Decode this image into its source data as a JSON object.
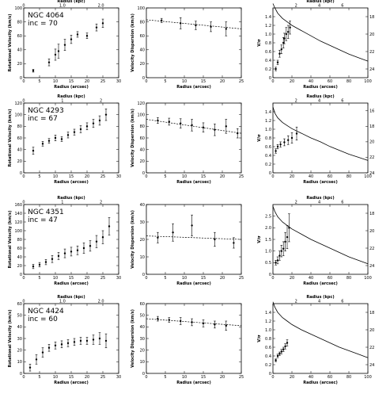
{
  "figure": {
    "rows": [
      {
        "name": "NGC 4064",
        "inc": "inc = 70"
      },
      {
        "name": "NGC 4293",
        "inc": "inc = 67"
      },
      {
        "name": "NGC 4351",
        "inc": "inc = 47"
      },
      {
        "name": "NGC 4424",
        "inc": "inc = 60"
      }
    ]
  },
  "chart_data": [
    {
      "type": "scatter",
      "galaxy": "NGC 4064",
      "inclination": "inc = 70",
      "xlabel": "Radius (arcsec)",
      "ylabel": "Rotational Velocity (km/s)",
      "top_label": "Radius (kpc)",
      "xlim": [
        0,
        30
      ],
      "ylim": [
        0,
        100
      ],
      "xticks": [
        "0",
        "5",
        "10",
        "15",
        "20",
        "25",
        "30"
      ],
      "yticks": [
        "0",
        "20",
        "40",
        "60",
        "80",
        "100"
      ],
      "top_ticks": [
        "0",
        "1.0",
        "2.0"
      ],
      "top_tick_x": [
        0,
        12.2,
        24.4
      ],
      "x": [
        3,
        8,
        10,
        11,
        13,
        15,
        17,
        20,
        23,
        25
      ],
      "y": [
        10,
        22,
        33,
        38,
        47,
        55,
        62,
        60,
        72,
        78
      ],
      "yerr": [
        2,
        5,
        8,
        10,
        8,
        6,
        4,
        4,
        5,
        6
      ]
    },
    {
      "type": "scatter",
      "xlabel": "Radius (arcsec)",
      "ylabel": "Velocity Dispersion (km/s)",
      "xlim": [
        0,
        25
      ],
      "ylim": [
        0,
        100
      ],
      "xticks": [
        "0",
        "5",
        "10",
        "15",
        "20",
        "25"
      ],
      "yticks": [
        "0",
        "20",
        "40",
        "60",
        "80",
        "100"
      ],
      "x": [
        4,
        9,
        13,
        17,
        21
      ],
      "y": [
        82,
        78,
        75,
        73,
        70
      ],
      "yerr": [
        3,
        8,
        6,
        7,
        10
      ],
      "fit": {
        "x": [
          0,
          25
        ],
        "y": [
          83,
          70
        ]
      }
    },
    {
      "type": "line",
      "xlabel": "Radius (arcsec)",
      "ylabel": "V/σ",
      "right_label": "μ (mag/arcsec²)",
      "top_label": "Radius (kpc)",
      "xlim": [
        0,
        100
      ],
      "ylim": [
        0,
        1.6
      ],
      "xticks": [
        "0",
        "20",
        "40",
        "60",
        "80",
        "100"
      ],
      "yticks": [
        "0",
        "0.2",
        "0.4",
        "0.6",
        "0.8",
        "1.0",
        "1.2",
        "1.4"
      ],
      "right_ticks": [
        "18",
        "20",
        "22",
        "24"
      ],
      "top_ticks": [
        "2",
        "4",
        "6"
      ],
      "top_tick_x": [
        24.4,
        48.8,
        73.2
      ],
      "x": [
        3,
        5,
        7,
        9,
        11,
        12,
        14,
        16,
        18
      ],
      "y": [
        0.2,
        0.35,
        0.55,
        0.65,
        0.8,
        0.9,
        1.0,
        1.05,
        1.15
      ],
      "yerr": [
        0.04,
        0.05,
        0.08,
        0.1,
        0.12,
        0.12,
        0.15,
        0.15,
        0.15
      ],
      "profile": {
        "x": [
          0,
          2,
          5,
          10,
          15,
          20,
          30,
          40,
          50,
          60,
          70,
          80,
          90,
          100
        ],
        "mu": [
          16.5,
          17.0,
          17.6,
          18.2,
          18.6,
          19.0,
          19.6,
          20.2,
          20.8,
          21.3,
          21.8,
          22.3,
          22.7,
          23.1
        ],
        "mu_range": [
          17,
          25
        ]
      }
    },
    {
      "type": "scatter",
      "galaxy": "NGC 4293",
      "inclination": "inc = 67",
      "xlabel": "Radius (arcsec)",
      "ylabel": "Rotational Velocity (km/s)",
      "top_label": "Radius (kpc)",
      "xlim": [
        0,
        30
      ],
      "ylim": [
        0,
        120
      ],
      "xticks": [
        "0",
        "5",
        "10",
        "15",
        "20",
        "25",
        "30"
      ],
      "yticks": [
        "0",
        "20",
        "40",
        "60",
        "80",
        "100",
        "120"
      ],
      "top_ticks": [
        "0",
        "1",
        "2"
      ],
      "top_tick_x": [
        0,
        12.2,
        24.4
      ],
      "x": [
        3,
        6,
        8,
        10,
        12,
        14,
        16,
        18,
        20,
        22,
        24,
        26
      ],
      "y": [
        38,
        50,
        55,
        60,
        58,
        65,
        70,
        75,
        80,
        85,
        90,
        100
      ],
      "yerr": [
        6,
        4,
        4,
        5,
        4,
        5,
        5,
        6,
        6,
        7,
        8,
        10
      ]
    },
    {
      "type": "scatter",
      "xlabel": "Radius (arcsec)",
      "ylabel": "Velocity Dispersion (km/s)",
      "xlim": [
        0,
        25
      ],
      "ylim": [
        0,
        120
      ],
      "xticks": [
        "0",
        "5",
        "10",
        "15",
        "20",
        "25"
      ],
      "yticks": [
        "0",
        "20",
        "40",
        "60",
        "80",
        "100",
        "120"
      ],
      "x": [
        3,
        6,
        9,
        12,
        15,
        18,
        21,
        24
      ],
      "y": [
        90,
        88,
        85,
        82,
        78,
        74,
        80,
        68
      ],
      "yerr": [
        5,
        6,
        8,
        10,
        8,
        10,
        12,
        8
      ],
      "fit": {
        "x": [
          0,
          25
        ],
        "y": [
          92,
          68
        ]
      }
    },
    {
      "type": "line",
      "xlabel": "Radius (arcsec)",
      "ylabel": "V/σ",
      "right_label": "μ (mag/arcsec²)",
      "top_label": "Radius (kpc)",
      "xlim": [
        0,
        100
      ],
      "ylim": [
        0,
        1.6
      ],
      "xticks": [
        "0",
        "20",
        "40",
        "60",
        "80",
        "100"
      ],
      "yticks": [
        "0",
        "0.2",
        "0.4",
        "0.6",
        "0.8",
        "1.0",
        "1.2",
        "1.4"
      ],
      "right_ticks": [
        "16",
        "18",
        "20",
        "22",
        "24"
      ],
      "top_ticks": [
        "2",
        "4",
        "6"
      ],
      "top_tick_x": [
        24.4,
        48.8,
        73.2
      ],
      "x": [
        3,
        5,
        8,
        12,
        16,
        20,
        25
      ],
      "y": [
        0.5,
        0.6,
        0.65,
        0.7,
        0.75,
        0.8,
        0.9
      ],
      "yerr": [
        0.05,
        0.05,
        0.06,
        0.08,
        0.1,
        0.12,
        0.15
      ],
      "profile": {
        "x": [
          0,
          2,
          5,
          10,
          15,
          20,
          30,
          40,
          50,
          60,
          70,
          80,
          90,
          100
        ],
        "mu": [
          15.5,
          16.3,
          16.9,
          17.5,
          17.9,
          18.3,
          18.9,
          19.5,
          20.0,
          20.6,
          21.1,
          21.6,
          22.0,
          22.4
        ],
        "mu_range": [
          15,
          24
        ]
      }
    },
    {
      "type": "scatter",
      "galaxy": "NGC 4351",
      "inclination": "inc = 47",
      "xlabel": "Radius (arcsec)",
      "ylabel": "Rotational Velocity (km/s)",
      "top_label": "Radius (kpc)",
      "xlim": [
        0,
        30
      ],
      "ylim": [
        0,
        160
      ],
      "xticks": [
        "0",
        "5",
        "10",
        "15",
        "20",
        "25",
        "30"
      ],
      "yticks": [
        "0",
        "20",
        "40",
        "60",
        "80",
        "100",
        "120",
        "140",
        "160"
      ],
      "top_ticks": [
        "0",
        "1",
        "2"
      ],
      "top_tick_x": [
        0,
        12.2,
        24.4
      ],
      "x": [
        3,
        5,
        7,
        9,
        11,
        13,
        15,
        17,
        19,
        21,
        23,
        25,
        27
      ],
      "y": [
        18,
        22,
        28,
        35,
        42,
        48,
        52,
        55,
        60,
        65,
        75,
        85,
        110
      ],
      "yerr": [
        5,
        5,
        6,
        8,
        8,
        10,
        10,
        10,
        12,
        12,
        14,
        15,
        20
      ]
    },
    {
      "type": "scatter",
      "xlabel": "Radius (arcsec)",
      "ylabel": "Velocity Dispersion (km/s)",
      "xlim": [
        0,
        25
      ],
      "ylim": [
        0,
        40
      ],
      "xticks": [
        "0",
        "5",
        "10",
        "15",
        "20",
        "25"
      ],
      "yticks": [
        "0",
        "10",
        "20",
        "30",
        "40"
      ],
      "x": [
        3,
        7,
        12,
        18,
        23
      ],
      "y": [
        21,
        24,
        28,
        20,
        18
      ],
      "yerr": [
        3,
        5,
        6,
        4,
        3
      ],
      "fit": {
        "x": [
          0,
          25
        ],
        "y": [
          22,
          20
        ]
      }
    },
    {
      "type": "line",
      "xlabel": "Radius (arcsec)",
      "ylabel": "V/σ",
      "right_label": "μ (mag/arcsec²)",
      "top_label": "Radius (kpc)",
      "xlim": [
        0,
        100
      ],
      "ylim": [
        0,
        3.0
      ],
      "xticks": [
        "0",
        "20",
        "40",
        "60",
        "80",
        "100"
      ],
      "yticks": [
        "0",
        "0.5",
        "1.0",
        "1.5",
        "2.0",
        "2.5"
      ],
      "right_ticks": [
        "18",
        "20",
        "22",
        "24"
      ],
      "top_ticks": [
        "2",
        "4",
        "6"
      ],
      "top_tick_x": [
        24.4,
        48.8,
        73.2
      ],
      "x": [
        3,
        5,
        7,
        9,
        11,
        13,
        15,
        17
      ],
      "y": [
        0.5,
        0.6,
        0.8,
        1.0,
        1.1,
        1.4,
        1.6,
        2.0
      ],
      "yerr": [
        0.1,
        0.15,
        0.2,
        0.25,
        0.3,
        0.4,
        0.5,
        0.6
      ],
      "profile": {
        "x": [
          0,
          2,
          5,
          10,
          15,
          20,
          30,
          40,
          50,
          60,
          70,
          80,
          90,
          100
        ],
        "mu": [
          17.2,
          17.8,
          18.4,
          19.0,
          19.4,
          19.8,
          20.4,
          21.0,
          21.5,
          22.0,
          22.5,
          23.0,
          23.4,
          23.8
        ],
        "mu_range": [
          17,
          25
        ]
      }
    },
    {
      "type": "scatter",
      "galaxy": "NGC 4424",
      "inclination": "inc = 60",
      "xlabel": "Radius (arcsec)",
      "ylabel": "Rotational Velocity (km/s)",
      "top_label": "Radius (kpc)",
      "xlim": [
        0,
        30
      ],
      "ylim": [
        0,
        60
      ],
      "xticks": [
        "0",
        "5",
        "10",
        "15",
        "20",
        "25",
        "30"
      ],
      "yticks": [
        "0",
        "10",
        "20",
        "30",
        "40",
        "50",
        "60"
      ],
      "top_ticks": [
        "0",
        "1.0",
        "2.0"
      ],
      "top_tick_x": [
        0,
        12.2,
        24.4
      ],
      "x": [
        2,
        4,
        6,
        8,
        10,
        12,
        14,
        16,
        18,
        20,
        22,
        24,
        26
      ],
      "y": [
        5,
        12,
        18,
        22,
        24,
        25,
        26,
        27,
        28,
        28,
        29,
        30,
        28
      ],
      "yerr": [
        3,
        4,
        4,
        3,
        3,
        3,
        3,
        3,
        3,
        3,
        4,
        5,
        6
      ]
    },
    {
      "type": "scatter",
      "xlabel": "Radius (arcsec)",
      "ylabel": "Velocity Dispersion (km/s)",
      "xlim": [
        0,
        25
      ],
      "ylim": [
        0,
        60
      ],
      "xticks": [
        "0",
        "5",
        "10",
        "15",
        "20",
        "25"
      ],
      "yticks": [
        "0",
        "10",
        "20",
        "30",
        "40",
        "50",
        "60"
      ],
      "x": [
        3,
        6,
        9,
        12,
        15,
        18,
        21
      ],
      "y": [
        47,
        46,
        45,
        44,
        43,
        42,
        41
      ],
      "yerr": [
        2,
        2,
        3,
        3,
        3,
        3,
        4
      ],
      "fit": {
        "x": [
          0,
          25
        ],
        "y": [
          47,
          41
        ]
      }
    },
    {
      "type": "line",
      "xlabel": "Radius (arcsec)",
      "ylabel": "V/σ",
      "right_label": "μ (mag/arcsec²)",
      "top_label": "Radius (kpc)",
      "xlim": [
        0,
        100
      ],
      "ylim": [
        0,
        1.6
      ],
      "xticks": [
        "0",
        "20",
        "40",
        "60",
        "80",
        "100"
      ],
      "yticks": [
        "0",
        "0.2",
        "0.4",
        "0.6",
        "0.8",
        "1.0",
        "1.2",
        "1.4"
      ],
      "right_ticks": [
        "18",
        "20",
        "22",
        "24"
      ],
      "top_ticks": [
        "2",
        "4",
        "6"
      ],
      "top_tick_x": [
        24.4,
        48.8,
        73.2
      ],
      "x": [
        3,
        5,
        7,
        9,
        11,
        13,
        15
      ],
      "y": [
        0.3,
        0.4,
        0.45,
        0.5,
        0.55,
        0.62,
        0.7
      ],
      "yerr": [
        0.03,
        0.04,
        0.04,
        0.05,
        0.05,
        0.06,
        0.07
      ],
      "profile": {
        "x": [
          0,
          2,
          5,
          10,
          15,
          20,
          30,
          40,
          50,
          60,
          70,
          80,
          90,
          100
        ],
        "mu": [
          16.8,
          17.4,
          18.0,
          18.6,
          19.0,
          19.4,
          20.0,
          20.5,
          21.0,
          21.5,
          22.0,
          22.4,
          22.8,
          23.2
        ],
        "mu_range": [
          17,
          25
        ]
      }
    }
  ]
}
